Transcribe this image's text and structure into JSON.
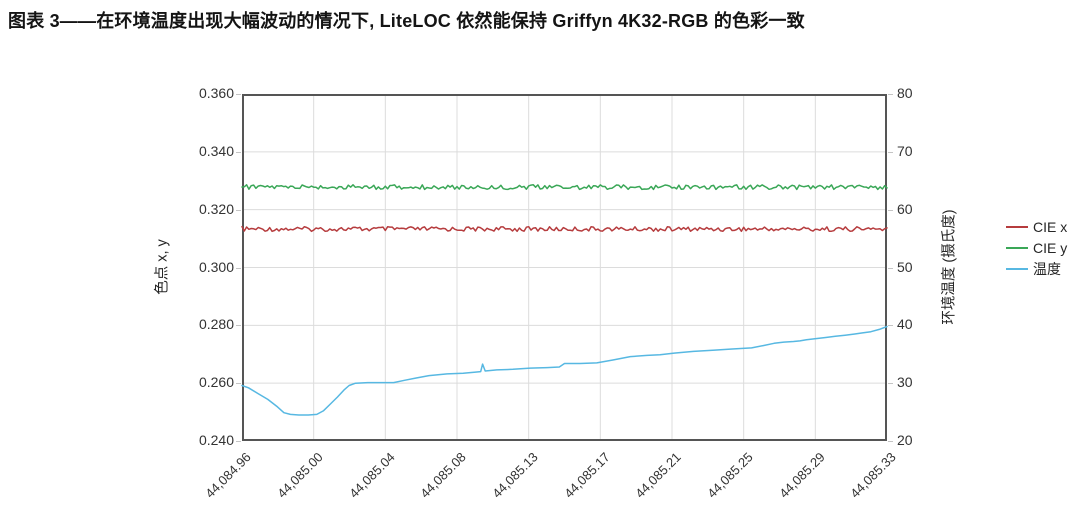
{
  "title": "图表 3——在环境温度出现大幅波动的情况下, LiteLOC 依然能保持 Griffyn 4K32-RGB 的色彩一致",
  "chart_data": {
    "type": "line",
    "title": "图表 3——在环境温度出现大幅波动的情况下, LiteLOC 依然能保持 Griffyn 4K32-RGB 的色彩一致",
    "grid": true,
    "legend_position": "right-of-plot",
    "x_axis": {
      "tick_labels": [
        "44,084.96",
        "44,085.00",
        "44,085.04",
        "44,085.08",
        "44,085.13",
        "44,085.17",
        "44,085.21",
        "44,085.25",
        "44,085.29",
        "44,085.33"
      ]
    },
    "left_y_axis": {
      "label": "色点 x, y",
      "range": [
        0.24,
        0.36
      ],
      "tick_step": 0.02,
      "ticks": [
        0.36,
        0.34,
        0.32,
        0.3,
        0.28,
        0.26,
        0.24
      ]
    },
    "right_y_axis": {
      "label": "环境温度 (摄氏度)",
      "range": [
        20,
        80
      ],
      "tick_step": 10,
      "ticks": [
        80,
        70,
        60,
        50,
        40,
        30,
        20
      ]
    },
    "style": {
      "grid_color": "#dcdcdc",
      "border_color": "#555555",
      "tick_color": "#c4c4c4"
    },
    "series": [
      {
        "name": "CIE x",
        "data_name": "cie-x-line",
        "axis": "left",
        "color": "#b63c3e",
        "style": "noisy-constant",
        "mean_value": 0.3133,
        "noise_amplitude": 0.0005
      },
      {
        "name": "CIE y",
        "data_name": "cie-y-line",
        "axis": "left",
        "color": "#3aa757",
        "style": "noisy-constant",
        "mean_value": 0.3278,
        "noise_amplitude": 0.0005
      },
      {
        "name": "温度",
        "data_name": "temperature-line",
        "axis": "right",
        "color": "#57b8e2",
        "style": "line",
        "points_frac_value": [
          [
            0.0,
            29.6
          ],
          [
            0.01,
            29.2
          ],
          [
            0.025,
            28.2
          ],
          [
            0.04,
            27.2
          ],
          [
            0.055,
            25.9
          ],
          [
            0.065,
            24.9
          ],
          [
            0.075,
            24.6
          ],
          [
            0.088,
            24.5
          ],
          [
            0.103,
            24.5
          ],
          [
            0.116,
            24.6
          ],
          [
            0.126,
            25.2
          ],
          [
            0.137,
            26.4
          ],
          [
            0.148,
            27.6
          ],
          [
            0.158,
            28.8
          ],
          [
            0.166,
            29.6
          ],
          [
            0.176,
            30.0
          ],
          [
            0.195,
            30.1
          ],
          [
            0.215,
            30.1
          ],
          [
            0.235,
            30.1
          ],
          [
            0.252,
            30.5
          ],
          [
            0.27,
            30.9
          ],
          [
            0.29,
            31.3
          ],
          [
            0.318,
            31.6
          ],
          [
            0.343,
            31.7
          ],
          [
            0.36,
            31.9
          ],
          [
            0.37,
            32.0
          ],
          [
            0.373,
            33.3
          ],
          [
            0.377,
            32.1
          ],
          [
            0.395,
            32.3
          ],
          [
            0.42,
            32.4
          ],
          [
            0.447,
            32.6
          ],
          [
            0.473,
            32.7
          ],
          [
            0.492,
            32.8
          ],
          [
            0.5,
            33.4
          ],
          [
            0.524,
            33.4
          ],
          [
            0.55,
            33.5
          ],
          [
            0.575,
            34.0
          ],
          [
            0.602,
            34.6
          ],
          [
            0.628,
            34.8
          ],
          [
            0.648,
            34.9
          ],
          [
            0.67,
            35.2
          ],
          [
            0.7,
            35.5
          ],
          [
            0.73,
            35.7
          ],
          [
            0.76,
            35.9
          ],
          [
            0.79,
            36.1
          ],
          [
            0.808,
            36.5
          ],
          [
            0.825,
            36.9
          ],
          [
            0.84,
            37.1
          ],
          [
            0.855,
            37.2
          ],
          [
            0.865,
            37.3
          ],
          [
            0.875,
            37.5
          ],
          [
            0.89,
            37.7
          ],
          [
            0.905,
            37.9
          ],
          [
            0.92,
            38.1
          ],
          [
            0.935,
            38.3
          ],
          [
            0.95,
            38.5
          ],
          [
            0.962,
            38.7
          ],
          [
            0.975,
            38.9
          ],
          [
            0.988,
            39.3
          ],
          [
            1.0,
            39.8
          ]
        ]
      }
    ]
  }
}
